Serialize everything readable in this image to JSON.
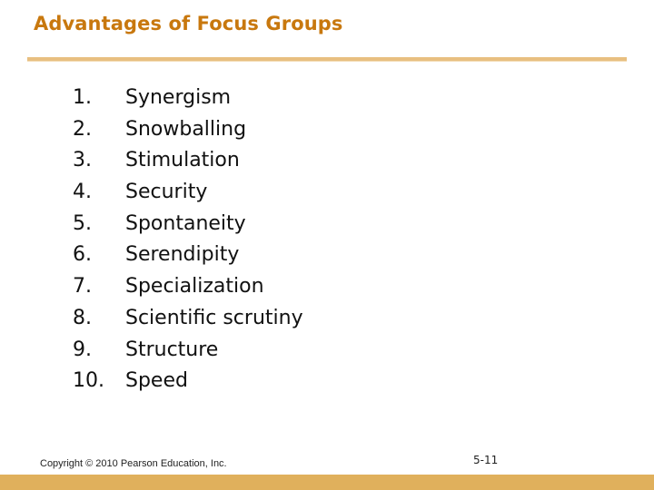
{
  "slide": {
    "title": "Advantages of Focus Groups",
    "items": [
      {
        "num": "1.",
        "text": "Synergism"
      },
      {
        "num": "2.",
        "text": "Snowballing"
      },
      {
        "num": "3.",
        "text": "Stimulation"
      },
      {
        "num": "4.",
        "text": "Security"
      },
      {
        "num": "5.",
        "text": "Spontaneity"
      },
      {
        "num": "6.",
        "text": "Serendipity"
      },
      {
        "num": "7.",
        "text": "Specialization"
      },
      {
        "num": "8.",
        "text": "Scientific scrutiny"
      },
      {
        "num": "9.",
        "text": "Structure"
      },
      {
        "num": "10.",
        "text": "Speed"
      }
    ],
    "footer": {
      "copyright": "Copyright © 2010 Pearson Education, Inc.",
      "page": "5-11"
    }
  },
  "colors": {
    "title": "#c8780e",
    "rule": "#e8bf80",
    "bottom_bar": "#e0b05c"
  }
}
